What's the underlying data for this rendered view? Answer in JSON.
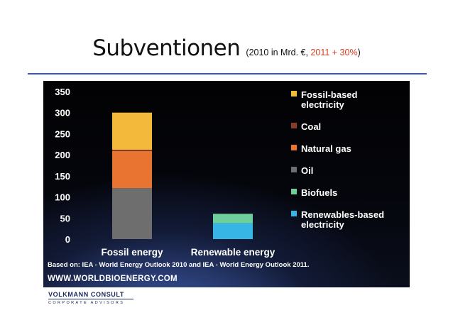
{
  "header": {
    "title": "Subventionen",
    "subtitle_prefix": "(2010 in Mrd. €, ",
    "subtitle_highlight": "2011 + 30%",
    "subtitle_suffix": ")"
  },
  "colors": {
    "fossil_based_electricity": "#f2b93b",
    "coal": "#8a3b22",
    "natural_gas": "#e97432",
    "oil": "#6e6e6e",
    "biofuels": "#6fcf9a",
    "renewables_based_electricity": "#37b6e6"
  },
  "chart_data": {
    "type": "bar",
    "stacked": true,
    "title": "",
    "xlabel": "",
    "ylabel": "",
    "ylim": [
      0,
      350
    ],
    "yticks": [
      "0",
      "50",
      "100",
      "150",
      "200",
      "250",
      "300",
      "350"
    ],
    "categories": [
      "Fossil energy",
      "Renewable energy"
    ],
    "series": [
      {
        "name": "Oil",
        "color_key": "oil",
        "values": [
          121,
          0
        ]
      },
      {
        "name": "Natural gas",
        "color_key": "natural_gas",
        "values": [
          88,
          0
        ]
      },
      {
        "name": "Coal",
        "color_key": "coal",
        "values": [
          3,
          0
        ]
      },
      {
        "name": "Fossil-based electricity",
        "color_key": "fossil_based_electricity",
        "values": [
          88,
          0
        ]
      },
      {
        "name": "Renewables-based electricity",
        "color_key": "renewables_based_electricity",
        "values": [
          0,
          38
        ]
      },
      {
        "name": "Biofuels",
        "color_key": "biofuels",
        "values": [
          0,
          22
        ]
      }
    ],
    "legend": {
      "placement": "right",
      "items": [
        {
          "lines": [
            "Fossil-based",
            "electricity"
          ],
          "color_key": "fossil_based_electricity"
        },
        {
          "lines": [
            "Coal"
          ],
          "color_key": "coal"
        },
        {
          "lines": [
            "Natural gas"
          ],
          "color_key": "natural_gas"
        },
        {
          "lines": [
            "Oil"
          ],
          "color_key": "oil"
        },
        {
          "lines": [
            "Biofuels"
          ],
          "color_key": "biofuels"
        },
        {
          "lines": [
            "Renewables-based",
            "electricity"
          ],
          "color_key": "renewables_based_electricity"
        }
      ]
    },
    "source_note": "Based on: IEA - World Energy Outlook 2010 and IEA - World Energy Outlook 2011.",
    "url": "WWW.WORLDBIOENERGY.COM"
  },
  "footer": {
    "logo_top": "VOLKMANN CONSULT",
    "logo_bottom": "CORPORATE ADVISORS"
  }
}
